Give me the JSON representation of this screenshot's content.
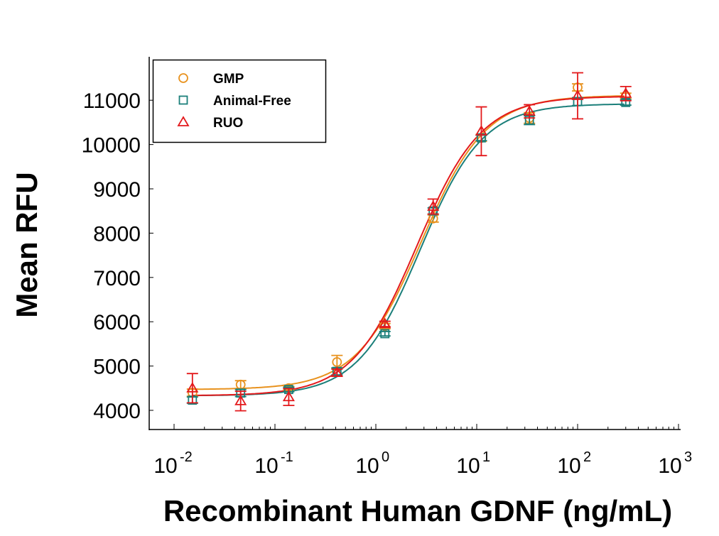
{
  "chart_data": {
    "type": "scatter",
    "title": "",
    "xlabel": "Recombinant Human GDNF (ng/mL)",
    "ylabel": "Mean RFU",
    "xscale": "log",
    "xlim": [
      0.01,
      1000
    ],
    "ylim": [
      3800,
      11800
    ],
    "x_ticks": [
      0.01,
      0.1,
      1,
      10,
      100,
      1000
    ],
    "x_tick_labels": [
      {
        "base": "10",
        "exp": "-2"
      },
      {
        "base": "10",
        "exp": "-1"
      },
      {
        "base": "10",
        "exp": "0"
      },
      {
        "base": "10",
        "exp": "1"
      },
      {
        "base": "10",
        "exp": "2"
      },
      {
        "base": "10",
        "exp": "3"
      }
    ],
    "y_ticks": [
      4000,
      5000,
      6000,
      7000,
      8000,
      9000,
      10000,
      11000
    ],
    "y_tick_labels": [
      "4000",
      "5000",
      "6000",
      "7000",
      "8000",
      "9000",
      "10000",
      "11000"
    ],
    "grid": false,
    "legend_position": "top-left",
    "x": [
      0.0152,
      0.0457,
      0.137,
      0.412,
      1.23,
      3.7,
      11.1,
      33.3,
      100,
      300
    ],
    "series": [
      {
        "name": "GMP",
        "marker": "circle",
        "color": "#E8921E",
        "values": [
          4400,
          4580,
          4500,
          5090,
          5900,
          8330,
          10150,
          10600,
          11290,
          11100
        ],
        "errors": [
          80,
          90,
          40,
          150,
          60,
          80,
          80,
          120,
          80,
          60
        ]
      },
      {
        "name": "Animal-Free",
        "marker": "square",
        "color": "#1B7F7A",
        "values": [
          4230,
          4390,
          4470,
          4880,
          5730,
          8500,
          10150,
          10550,
          10970,
          10950
        ],
        "errors": [
          70,
          80,
          50,
          80,
          50,
          70,
          60,
          100,
          90,
          60
        ]
      },
      {
        "name": "RUO",
        "marker": "triangle",
        "color": "#E3191C",
        "values": [
          4500,
          4210,
          4300,
          4850,
          5950,
          8600,
          10300,
          10750,
          11100,
          11150
        ],
        "errors": [
          330,
          220,
          190,
          80,
          60,
          170,
          550,
          150,
          520,
          160
        ]
      }
    ]
  }
}
